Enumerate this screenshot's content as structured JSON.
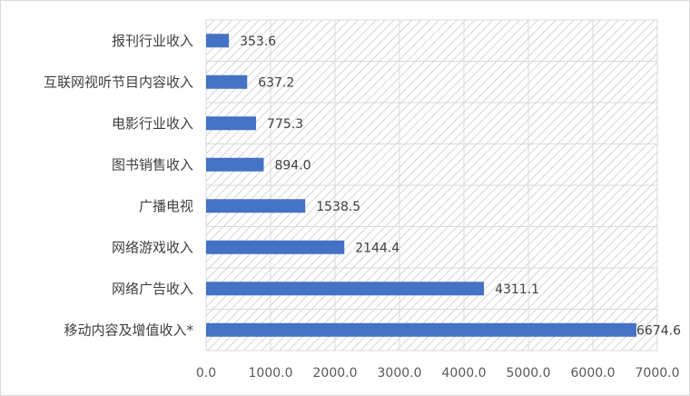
{
  "chart_data": {
    "type": "bar",
    "orientation": "horizontal",
    "categories": [
      "报刊行业收入",
      "互联网视听节目内容收入",
      "电影行业收入",
      "图书销售收入",
      "广播电视",
      "网络游戏收入",
      "网络广告收入",
      "移动内容及增值收入*"
    ],
    "values": [
      353.6,
      637.2,
      775.3,
      894.0,
      1538.5,
      2144.4,
      4311.1,
      6674.6
    ],
    "value_labels": [
      "353.6",
      "637.2",
      "775.3",
      "894.0",
      "1538.5",
      "2144.4",
      "4311.1",
      "6674.6"
    ],
    "xlim": [
      0,
      7000
    ],
    "x_ticks": [
      "0.0",
      "1000.0",
      "2000.0",
      "3000.0",
      "4000.0",
      "5000.0",
      "6000.0",
      "7000.0"
    ],
    "title": "",
    "xlabel": "",
    "ylabel": "",
    "grid": true,
    "plot_background": "diagonal-hatch",
    "bar_color": "#4472c4",
    "legend": "none"
  }
}
